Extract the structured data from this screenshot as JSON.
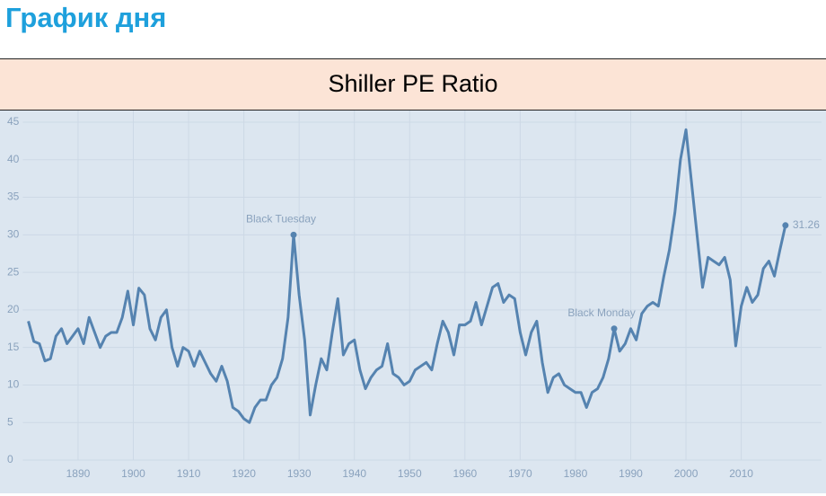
{
  "header": {
    "title": "График дня"
  },
  "chart_data": {
    "type": "line",
    "title": "Shiller PE Ratio",
    "x": [
      1881,
      1882,
      1883,
      1884,
      1885,
      1886,
      1887,
      1888,
      1889,
      1890,
      1891,
      1892,
      1893,
      1894,
      1895,
      1896,
      1897,
      1898,
      1899,
      1900,
      1901,
      1902,
      1903,
      1904,
      1905,
      1906,
      1907,
      1908,
      1909,
      1910,
      1911,
      1912,
      1913,
      1914,
      1915,
      1916,
      1917,
      1918,
      1919,
      1920,
      1921,
      1922,
      1923,
      1924,
      1925,
      1926,
      1927,
      1928,
      1929,
      1930,
      1931,
      1932,
      1933,
      1934,
      1935,
      1936,
      1937,
      1938,
      1939,
      1940,
      1941,
      1942,
      1943,
      1944,
      1945,
      1946,
      1947,
      1948,
      1949,
      1950,
      1951,
      1952,
      1953,
      1954,
      1955,
      1956,
      1957,
      1958,
      1959,
      1960,
      1961,
      1962,
      1963,
      1964,
      1965,
      1966,
      1967,
      1968,
      1969,
      1970,
      1971,
      1972,
      1973,
      1974,
      1975,
      1976,
      1977,
      1978,
      1979,
      1980,
      1981,
      1982,
      1983,
      1984,
      1985,
      1986,
      1987,
      1988,
      1989,
      1990,
      1991,
      1992,
      1993,
      1994,
      1995,
      1996,
      1997,
      1998,
      1999,
      2000,
      2001,
      2002,
      2003,
      2004,
      2005,
      2006,
      2007,
      2008,
      2009,
      2010,
      2011,
      2012,
      2013,
      2014,
      2015,
      2016,
      2017,
      2018
    ],
    "series": [
      {
        "name": "Shiller PE Ratio",
        "color": "#5583b0",
        "values": [
          18.5,
          15.8,
          15.5,
          13.2,
          13.5,
          16.5,
          17.5,
          15.5,
          16.5,
          17.5,
          15.5,
          19,
          17,
          15,
          16.5,
          17,
          17,
          19,
          22.5,
          18,
          22.9,
          22,
          17.5,
          16,
          19,
          20,
          15,
          12.5,
          15,
          14.5,
          12.5,
          14.5,
          13,
          11.5,
          10.5,
          12.5,
          10.5,
          7,
          6.5,
          5.5,
          5,
          7,
          8,
          8,
          10,
          11,
          13.5,
          19,
          30,
          22,
          16,
          6,
          10,
          13.5,
          12,
          17,
          21.5,
          14,
          15.5,
          16,
          12,
          9.5,
          11,
          12,
          12.5,
          15.5,
          11.5,
          11,
          10,
          10.5,
          12,
          12.5,
          13,
          12,
          15.5,
          18.5,
          17,
          14,
          18,
          18,
          18.5,
          21,
          18,
          20.5,
          23,
          23.5,
          21,
          22,
          21.5,
          17,
          14,
          17,
          18.5,
          13,
          9,
          11,
          11.5,
          10,
          9.5,
          9,
          9,
          7,
          9,
          9.5,
          11,
          13.5,
          17.5,
          14.5,
          15.5,
          17.5,
          16,
          19.5,
          20.5,
          21,
          20.5,
          24.5,
          28,
          33,
          40,
          44,
          37,
          30,
          23,
          27,
          26.5,
          26,
          27,
          24,
          15.2,
          20.5,
          23,
          21,
          22,
          25.5,
          26.5,
          24.5,
          28,
          31.26
        ]
      }
    ],
    "annotations": [
      {
        "text": "Black Tuesday",
        "x": 1929
      },
      {
        "text": "Black Monday",
        "x": 1987
      }
    ],
    "xlim": [
      1880,
      2019
    ],
    "xticks": [
      1890,
      1900,
      1910,
      1920,
      1930,
      1940,
      1950,
      1960,
      1970,
      1980,
      1990,
      2000,
      2010
    ],
    "ylim": [
      0,
      45
    ],
    "yticks": [
      0,
      5,
      10,
      15,
      20,
      25,
      30,
      35,
      40,
      45
    ],
    "grid": true
  }
}
